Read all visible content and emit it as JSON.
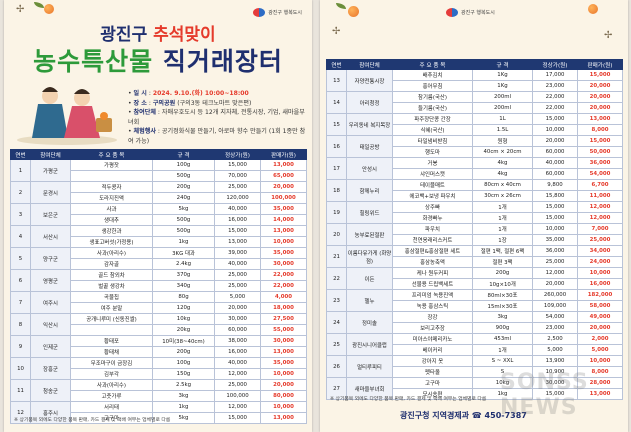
{
  "logo": {
    "text": "광진구 행복도시"
  },
  "title": {
    "line1_a": "광진구 ",
    "line1_b": "추석맞이",
    "line2_a": "농수특산물 ",
    "line2_b": "직거래장터"
  },
  "info": {
    "date_label": "일    시",
    "date_value": "2024. 9.10.(화) 10:00~18:00",
    "place_label": "장    소",
    "place_value": "구의공원",
    "place_extra": "(구의3동 테크노마트 맞은편)",
    "participants_label": "참여단체",
    "participants_value": "자매우호도시 등 12개 지자체, 전통시장, 기업, 새마을부녀회",
    "events_label": "체험행사",
    "events_value": "공기정화식물 만들기, 아로마 향수 만들기 (1회 1종만 참여 가능)"
  },
  "table_headers": [
    "연번",
    "참여단체",
    "주 요 품 목",
    "규 격",
    "정상가(원)",
    "판매가(원)"
  ],
  "left_rows": [
    {
      "no": "1",
      "org": "가평군",
      "items": [
        [
          "가평잣",
          "100g",
          "15,000",
          "13,000"
        ],
        [
          "",
          "500g",
          "70,000",
          "65,000"
        ]
      ]
    },
    {
      "no": "2",
      "org": "문경시",
      "items": [
        [
          "적두콩자",
          "200g",
          "25,000",
          "20,000"
        ],
        [
          "도라지진액",
          "240g",
          "120,000",
          "100,000"
        ]
      ]
    },
    {
      "no": "3",
      "org": "보은군",
      "items": [
        [
          "사과",
          "5kg",
          "40,000",
          "35,000"
        ],
        [
          "생대추",
          "500g",
          "16,000",
          "14,000"
        ]
      ]
    },
    {
      "no": "4",
      "org": "서산시",
      "items": [
        [
          "생강한과",
          "500g",
          "15,000",
          "13,000"
        ],
        [
          "생표고버섯(가정용)",
          "1kg",
          "13,000",
          "10,000"
        ]
      ]
    },
    {
      "no": "5",
      "org": "양구군",
      "items": [
        [
          "사과(아리수)",
          "3KG 대과",
          "39,000",
          "35,000"
        ],
        [
          "감자골",
          "2.4kg",
          "40,000",
          "30,000"
        ]
      ]
    },
    {
      "no": "6",
      "org": "영평군",
      "items": [
        [
          "골드 참외차",
          "370g",
          "25,000",
          "22,000"
        ],
        [
          "벌꿀 생강차",
          "340g",
          "25,000",
          "22,000"
        ]
      ]
    },
    {
      "no": "7",
      "org": "여주시",
      "items": [
        [
          "곡물칩",
          "80g",
          "5,000",
          "4,000"
        ],
        [
          "여주 분말",
          "120g",
          "20,000",
          "18,000"
        ]
      ]
    },
    {
      "no": "8",
      "org": "익산시",
      "items": [
        [
          "공개니루미 (신동진쌀)",
          "10kg",
          "30,000",
          "27,500"
        ],
        [
          "",
          "20kg",
          "60,000",
          "55,000"
        ]
      ]
    },
    {
      "no": "9",
      "org": "인제군",
      "items": [
        [
          "황태포",
          "10미(38~40cm)",
          "38,000",
          "30,000"
        ],
        [
          "황태채",
          "200g",
          "16,000",
          "13,000"
        ]
      ]
    },
    {
      "no": "10",
      "org": "장흥군",
      "items": [
        [
          "무조마구이 금장김",
          "100g",
          "40,000",
          "35,000"
        ],
        [
          "김부각",
          "150g",
          "12,000",
          "10,000"
        ]
      ]
    },
    {
      "no": "11",
      "org": "청송군",
      "items": [
        [
          "사과(아리수)",
          "2.5kg",
          "25,000",
          "20,000"
        ],
        [
          "고춧가루",
          "3kg",
          "100,000",
          "80,000"
        ]
      ]
    },
    {
      "no": "12",
      "org": "홍주시",
      "items": [
        [
          "서리태",
          "1kg",
          "12,000",
          "10,000"
        ],
        [
          "고구마",
          "5kg",
          "15,000",
          "13,000"
        ]
      ]
    }
  ],
  "right_rows": [
    {
      "no": "13",
      "org": "자양전통시장",
      "items": [
        [
          "배추김치",
          "1Kg",
          "17,000",
          "15,000"
        ],
        [
          "홍어무침",
          "1Kg",
          "23,000",
          "20,000"
        ]
      ]
    },
    {
      "no": "14",
      "org": "아리청정",
      "items": [
        [
          "참기름(국산)",
          "200ml",
          "22,000",
          "20,000"
        ],
        [
          "들기름(국산)",
          "200ml",
          "22,000",
          "20,000"
        ]
      ]
    },
    {
      "no": "15",
      "org": "우리동네 복지목장",
      "items": [
        [
          "파주장단콩 간장",
          "1L",
          "15,000",
          "13,000"
        ],
        [
          "식혜(국산)",
          "1.5L",
          "10,000",
          "8,000"
        ]
      ]
    },
    {
      "no": "16",
      "org": "태일공방",
      "items": [
        [
          "타일냄비받침",
          "원형",
          "20,000",
          "15,000"
        ],
        [
          "행도마",
          "40cm × 20cm",
          "60,000",
          "50,000"
        ]
      ]
    },
    {
      "no": "17",
      "org": "안성시",
      "items": [
        [
          "거봉",
          "4kg",
          "40,000",
          "36,000"
        ],
        [
          "샤인머스캣",
          "4kg",
          "60,000",
          "54,000"
        ]
      ]
    },
    {
      "no": "18",
      "org": "함께누리",
      "items": [
        [
          "테이블매트",
          "80cm x 40cm",
          "9,800",
          "6,700"
        ],
        [
          "에코백+보냉 파우치",
          "30cm x 26cm",
          "15,800",
          "11,000"
        ]
      ]
    },
    {
      "no": "19",
      "org": "힐링위드",
      "items": [
        [
          "상주빠",
          "1개",
          "15,000",
          "12,000"
        ],
        [
          "화경빠누",
          "1개",
          "15,000",
          "12,000"
        ]
      ]
    },
    {
      "no": "20",
      "org": "농부료된절판",
      "items": [
        [
          "파우치",
          "1개",
          "10,000",
          "7,000"
        ],
        [
          "천연옹래리스커트",
          "1장",
          "35,000",
          "25,000"
        ]
      ]
    },
    {
      "no": "21",
      "org": "이룸다유가게 (화양점)",
      "items": [
        [
          "홍삼절편&홍삼절편 세트",
          "절편 1팩, 절편 6팩",
          "36,000",
          "34,000"
        ],
        [
          "홍삼농축액",
          "절편 3팩",
          "25,000",
          "24,000"
        ]
      ]
    },
    {
      "no": "22",
      "org": "이든",
      "items": [
        [
          "케나 원두커피",
          "200g",
          "12,000",
          "10,000"
        ],
        [
          "선물용 드립백세트",
          "10g×10개",
          "20,000",
          "16,000"
        ]
      ]
    },
    {
      "no": "23",
      "org": "헬누",
      "items": [
        [
          "프리미엄 녹용진액",
          "80ml×30포",
          "260,000",
          "182,000"
        ],
        [
          "녹용 홍삼스틱",
          "15ml×30포",
          "109,000",
          "58,000"
        ]
      ]
    },
    {
      "no": "24",
      "org": "정미솔",
      "items": [
        [
          "장강",
          "3kg",
          "54,000",
          "49,000"
        ],
        [
          "보리고추장",
          "900g",
          "23,000",
          "20,000"
        ]
      ]
    },
    {
      "no": "25",
      "org": "광진시니어클럽",
      "items": [
        [
          "미아스야메리카노",
          "453ml",
          "2,500",
          "2,000"
        ],
        [
          "베이커리",
          "1개",
          "5,000",
          "5,000"
        ]
      ]
    },
    {
      "no": "26",
      "org": "멀티루피티",
      "items": [
        [
          "강아지 옷",
          "S ~ XXL",
          "13,900",
          "10,000"
        ],
        [
          "펫타올",
          "S",
          "10,900",
          "8,000"
        ]
      ]
    },
    {
      "no": "27",
      "org": "새마을부녀회",
      "items": [
        [
          "고구마",
          "10kg",
          "30,000",
          "28,000"
        ],
        [
          "모시송편",
          "1kg",
          "15,000",
          "13,000"
        ]
      ]
    }
  ],
  "footnote": "※ 상기품목 외에도 다양한 품목 판매, 카드 결제 및 택배 여부는 업체별로 다름",
  "footer_org": "광진구청 지역경제과 ☎ 450-7387",
  "watermark": "SONSS NEWS"
}
